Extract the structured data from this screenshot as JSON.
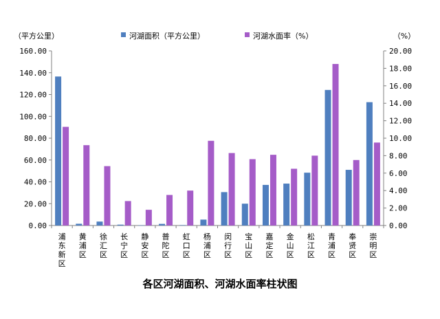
{
  "chart_data": {
    "type": "bar",
    "title": "各区河湖面积、河湖水面率柱状图",
    "left_axis_unit": "（平方公里）",
    "right_axis_unit": "（%）",
    "categories": [
      "浦东新区",
      "黄浦区",
      "徐汇区",
      "长宁区",
      "静安区",
      "普陀区",
      "虹口区",
      "杨浦区",
      "闵行区",
      "宝山区",
      "嘉定区",
      "金山区",
      "松江区",
      "青浦区",
      "奉贤区",
      "崇明区"
    ],
    "series": [
      {
        "name": "河湖面积（平方公里）",
        "color": "#4f7fbf",
        "axis": "left",
        "values": [
          136.5,
          1.6,
          3.6,
          0.8,
          0.2,
          1.5,
          0.4,
          5.4,
          30.6,
          20.0,
          37.2,
          38.4,
          48.4,
          124.2,
          51.0,
          113.0
        ]
      },
      {
        "name": "河湖水面率（%）",
        "color": "#a55cc8",
        "axis": "right",
        "values": [
          11.3,
          9.2,
          6.8,
          2.8,
          1.8,
          3.5,
          4.0,
          9.7,
          8.3,
          7.6,
          8.1,
          6.5,
          8.0,
          18.5,
          7.5,
          9.5
        ]
      }
    ],
    "left_axis": {
      "min": 0,
      "max": 160,
      "step": 20,
      "decimals": 2,
      "ticks": [
        "0.00",
        "20.00",
        "40.00",
        "60.00",
        "80.00",
        "100.00",
        "120.00",
        "140.00",
        "160.00"
      ]
    },
    "right_axis": {
      "min": 0,
      "max": 20,
      "step": 2,
      "decimals": 2,
      "ticks": [
        "0.00",
        "2.00",
        "4.00",
        "6.00",
        "8.00",
        "10.00",
        "12.00",
        "14.00",
        "16.00",
        "18.00",
        "20.00"
      ]
    },
    "legend_position": "top-center",
    "grid": false
  }
}
